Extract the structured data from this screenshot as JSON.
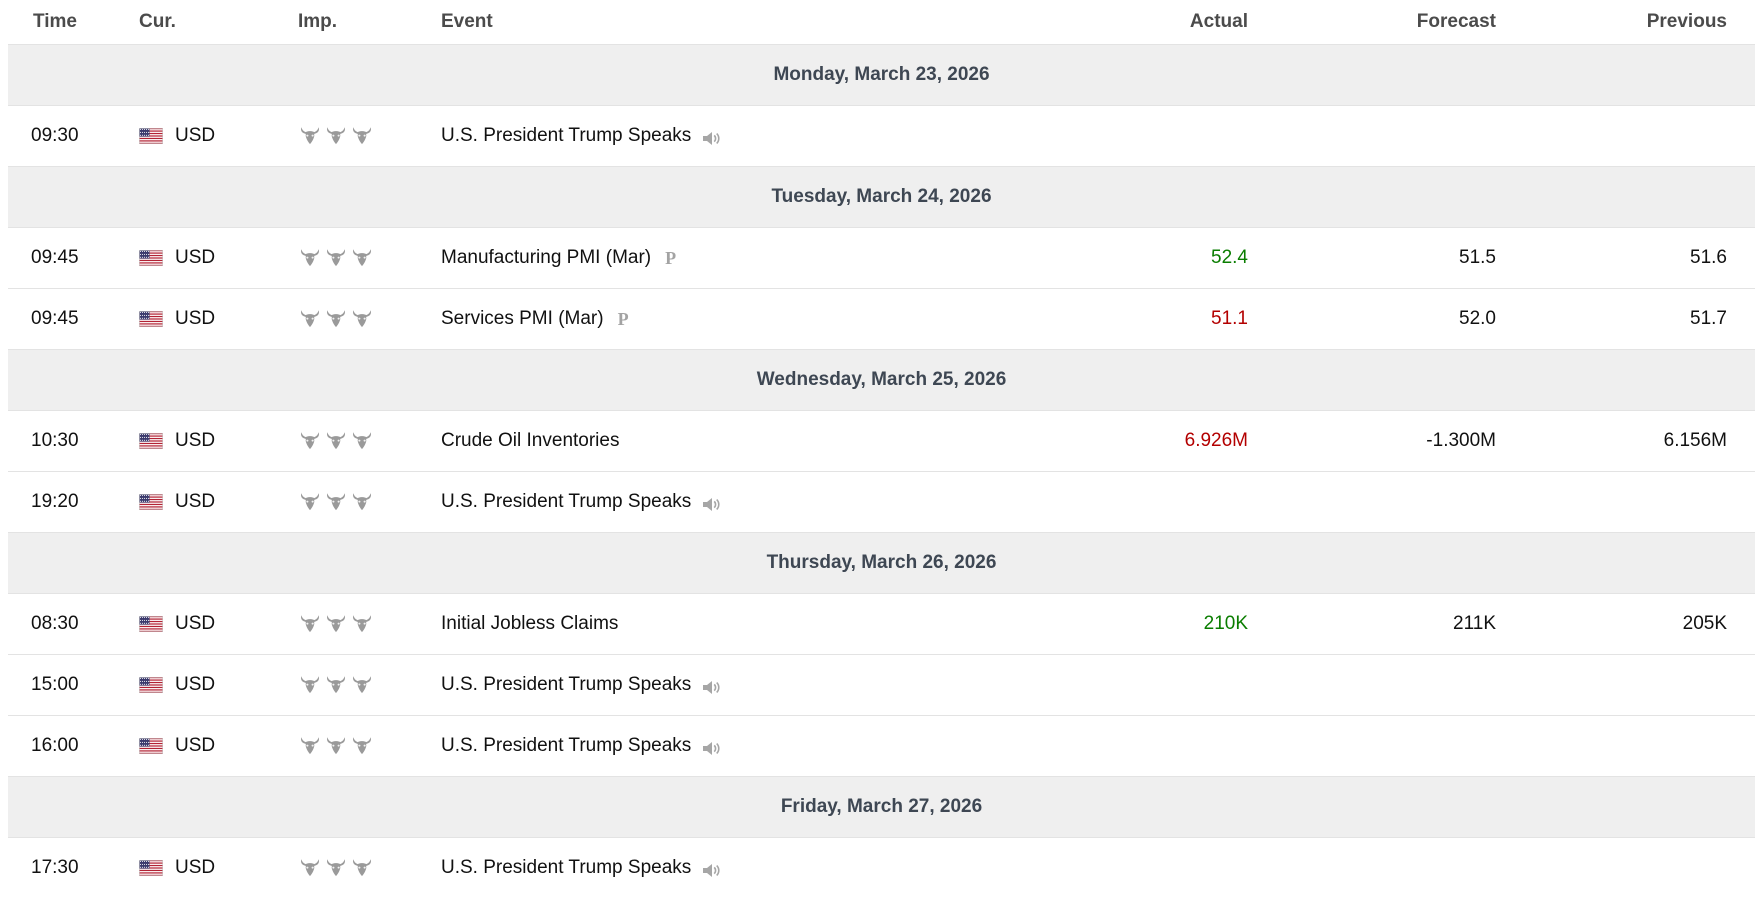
{
  "colors": {
    "positive": "#0a7d00",
    "negative": "#b30000",
    "neutral_text": "#111111",
    "header_text": "#4b4b4b",
    "day_text": "#3e4753",
    "day_bg": "#efefef",
    "row_border": "#e3e3e3",
    "bull_gray": "#9a9a9a",
    "icon_gray": "#a6a6a6",
    "flag_red": "#B22234",
    "flag_blue": "#3C3B6E"
  },
  "icons": {
    "flag": "us-flag-icon",
    "importance": "bull-icon",
    "speech": "speaker-icon",
    "preliminary_label": "P"
  },
  "table": {
    "columns": [
      {
        "key": "time",
        "label": "Time"
      },
      {
        "key": "cur",
        "label": "Cur."
      },
      {
        "key": "imp",
        "label": "Imp."
      },
      {
        "key": "event",
        "label": "Event"
      },
      {
        "key": "actual",
        "label": "Actual"
      },
      {
        "key": "forecast",
        "label": "Forecast"
      },
      {
        "key": "previous",
        "label": "Previous"
      }
    ],
    "days": [
      {
        "date": "Monday, March 23, 2026",
        "events": [
          {
            "time": "09:30",
            "currency": "USD",
            "importance": 3,
            "event": "U.S. President Trump Speaks",
            "preliminary": false,
            "speech": true,
            "actual": "",
            "forecast": "",
            "previous": "",
            "actual_sentiment": ""
          }
        ]
      },
      {
        "date": "Tuesday, March 24, 2026",
        "events": [
          {
            "time": "09:45",
            "currency": "USD",
            "importance": 3,
            "event": "Manufacturing PMI (Mar)",
            "preliminary": true,
            "speech": false,
            "actual": "52.4",
            "forecast": "51.5",
            "previous": "51.6",
            "actual_sentiment": "positive"
          },
          {
            "time": "09:45",
            "currency": "USD",
            "importance": 3,
            "event": "Services PMI (Mar)",
            "preliminary": true,
            "speech": false,
            "actual": "51.1",
            "forecast": "52.0",
            "previous": "51.7",
            "actual_sentiment": "negative"
          }
        ]
      },
      {
        "date": "Wednesday, March 25, 2026",
        "events": [
          {
            "time": "10:30",
            "currency": "USD",
            "importance": 3,
            "event": "Crude Oil Inventories",
            "preliminary": false,
            "speech": false,
            "actual": "6.926M",
            "forecast": "-1.300M",
            "previous": "6.156M",
            "actual_sentiment": "negative"
          },
          {
            "time": "19:20",
            "currency": "USD",
            "importance": 3,
            "event": "U.S. President Trump Speaks",
            "preliminary": false,
            "speech": true,
            "actual": "",
            "forecast": "",
            "previous": "",
            "actual_sentiment": ""
          }
        ]
      },
      {
        "date": "Thursday, March 26, 2026",
        "events": [
          {
            "time": "08:30",
            "currency": "USD",
            "importance": 3,
            "event": "Initial Jobless Claims",
            "preliminary": false,
            "speech": false,
            "actual": "210K",
            "forecast": "211K",
            "previous": "205K",
            "actual_sentiment": "positive"
          },
          {
            "time": "15:00",
            "currency": "USD",
            "importance": 3,
            "event": "U.S. President Trump Speaks",
            "preliminary": false,
            "speech": true,
            "actual": "",
            "forecast": "",
            "previous": "",
            "actual_sentiment": ""
          },
          {
            "time": "16:00",
            "currency": "USD",
            "importance": 3,
            "event": "U.S. President Trump Speaks",
            "preliminary": false,
            "speech": true,
            "actual": "",
            "forecast": "",
            "previous": "",
            "actual_sentiment": ""
          }
        ]
      },
      {
        "date": "Friday, March 27, 2026",
        "events": [
          {
            "time": "17:30",
            "currency": "USD",
            "importance": 3,
            "event": "U.S. President Trump Speaks",
            "preliminary": false,
            "speech": true,
            "actual": "",
            "forecast": "",
            "previous": "",
            "actual_sentiment": ""
          }
        ]
      }
    ]
  }
}
